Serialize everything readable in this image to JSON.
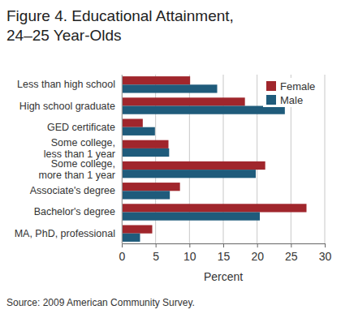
{
  "chart_data": {
    "type": "bar",
    "orientation": "horizontal",
    "title": "Figure 4. Educational Attainment,\n24–25 Year-Olds",
    "x_label": "Percent",
    "source": "Source: 2009 American Community Survey.",
    "categories": [
      "Less than high school",
      "High school graduate",
      "GED certificate",
      "Some college,\nless than 1 year",
      "Some college,\nmore than 1 year",
      "Associate's degree",
      "Bachelor's degree",
      "MA, PhD, professional"
    ],
    "series": [
      {
        "name": "Female",
        "color": "#a0262c",
        "values": [
          10.1,
          18.2,
          3.1,
          6.9,
          21.2,
          8.6,
          27.3,
          4.5
        ]
      },
      {
        "name": "Male",
        "color": "#1f5b7b",
        "values": [
          14.1,
          24.1,
          4.9,
          7.0,
          19.8,
          7.1,
          20.4,
          2.7
        ]
      }
    ],
    "xlim": [
      0,
      30
    ],
    "xticks": [
      0,
      5,
      10,
      15,
      20,
      25,
      30
    ],
    "grid": true,
    "legend": "top-right"
  }
}
